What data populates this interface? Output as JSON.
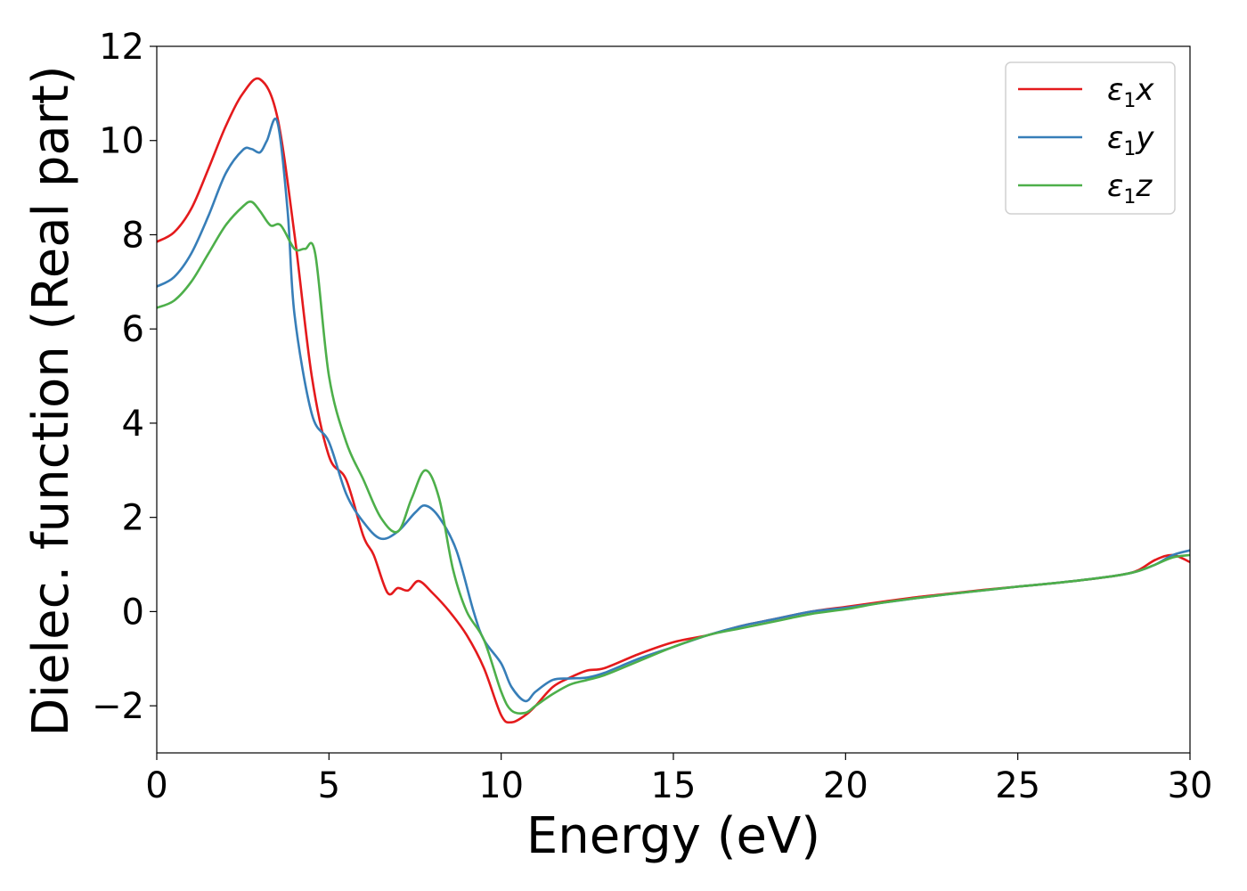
{
  "chart_data": {
    "type": "line",
    "title": "",
    "xlabel": "Energy (eV)",
    "ylabel": "Dielec. function (Real part)",
    "xlim": [
      0,
      30
    ],
    "ylim": [
      -3,
      12
    ],
    "xticks": [
      0,
      5,
      10,
      15,
      20,
      25,
      30
    ],
    "yticks": [
      -2,
      0,
      2,
      4,
      6,
      8,
      10,
      12
    ],
    "xtick_labels": [
      "0",
      "5",
      "10",
      "15",
      "20",
      "25",
      "30"
    ],
    "ytick_labels": [
      "−2",
      "0",
      "2",
      "4",
      "6",
      "8",
      "10",
      "12"
    ],
    "grid": false,
    "legend_position": "top-right",
    "series": [
      {
        "name": "ε1x",
        "legend_base": "ε",
        "legend_sub": "1",
        "legend_var": "x",
        "color": "#e41a1c",
        "x": [
          0,
          0.5,
          1,
          1.5,
          2,
          2.5,
          3,
          3.5,
          4,
          4.5,
          5,
          5.5,
          6,
          6.3,
          6.7,
          7,
          7.3,
          7.6,
          8,
          8.5,
          9,
          9.5,
          10,
          10.3,
          10.7,
          11,
          11.5,
          12,
          12.5,
          13,
          14,
          15,
          16,
          17,
          18,
          19,
          20,
          21,
          22,
          23,
          24,
          25,
          26,
          27,
          28,
          28.5,
          29,
          29.5,
          30
        ],
        "y": [
          7.85,
          8.05,
          8.55,
          9.4,
          10.3,
          11.0,
          11.3,
          10.5,
          8.0,
          5.0,
          3.3,
          2.8,
          1.6,
          1.2,
          0.4,
          0.5,
          0.45,
          0.65,
          0.4,
          0.0,
          -0.5,
          -1.2,
          -2.2,
          -2.35,
          -2.2,
          -2.0,
          -1.6,
          -1.4,
          -1.25,
          -1.2,
          -0.9,
          -0.65,
          -0.5,
          -0.3,
          -0.15,
          0.0,
          0.1,
          0.2,
          0.3,
          0.38,
          0.46,
          0.53,
          0.6,
          0.68,
          0.78,
          0.88,
          1.1,
          1.2,
          1.05
        ]
      },
      {
        "name": "ε1y",
        "legend_base": "ε",
        "legend_sub": "1",
        "legend_var": "y",
        "color": "#377eb8",
        "x": [
          0,
          0.5,
          1,
          1.5,
          2,
          2.5,
          2.75,
          3,
          3.2,
          3.5,
          3.8,
          4,
          4.5,
          5,
          5.5,
          6,
          6.5,
          7,
          7.5,
          7.8,
          8.2,
          8.7,
          9.2,
          9.5,
          10,
          10.3,
          10.7,
          11,
          11.5,
          12,
          12.5,
          13,
          14,
          15,
          16,
          17,
          18,
          19,
          20,
          21,
          22,
          23,
          24,
          25,
          26,
          27,
          28,
          28.5,
          29,
          29.5,
          30
        ],
        "y": [
          6.9,
          7.1,
          7.6,
          8.4,
          9.3,
          9.8,
          9.82,
          9.75,
          10.0,
          10.4,
          8.5,
          6.3,
          4.2,
          3.6,
          2.5,
          1.9,
          1.55,
          1.7,
          2.1,
          2.25,
          2.0,
          1.3,
          0.0,
          -0.6,
          -1.1,
          -1.6,
          -1.9,
          -1.7,
          -1.45,
          -1.42,
          -1.4,
          -1.3,
          -1.0,
          -0.75,
          -0.5,
          -0.3,
          -0.15,
          0.0,
          0.08,
          0.18,
          0.28,
          0.37,
          0.45,
          0.53,
          0.6,
          0.68,
          0.78,
          0.86,
          1.0,
          1.2,
          1.3
        ]
      },
      {
        "name": "ε1z",
        "legend_base": "ε",
        "legend_sub": "1",
        "legend_var": "z",
        "color": "#4daf4a",
        "x": [
          0,
          0.5,
          1,
          1.5,
          2,
          2.5,
          2.75,
          3,
          3.3,
          3.6,
          4,
          4.3,
          4.6,
          5,
          5.5,
          6,
          6.5,
          7,
          7.4,
          7.8,
          8.2,
          8.6,
          9,
          9.5,
          10,
          10.3,
          10.7,
          11,
          11.5,
          12,
          12.5,
          13,
          14,
          15,
          16,
          17,
          18,
          19,
          20,
          21,
          22,
          23,
          24,
          25,
          26,
          27,
          28,
          28.5,
          29,
          29.5,
          30
        ],
        "y": [
          6.45,
          6.6,
          7.0,
          7.6,
          8.2,
          8.6,
          8.7,
          8.5,
          8.2,
          8.2,
          7.7,
          7.7,
          7.6,
          5.0,
          3.6,
          2.8,
          2.0,
          1.7,
          2.4,
          3.0,
          2.4,
          0.9,
          0.0,
          -0.6,
          -1.7,
          -2.1,
          -2.15,
          -2.0,
          -1.75,
          -1.55,
          -1.45,
          -1.35,
          -1.05,
          -0.75,
          -0.5,
          -0.35,
          -0.2,
          -0.05,
          0.05,
          0.18,
          0.28,
          0.37,
          0.45,
          0.53,
          0.6,
          0.68,
          0.78,
          0.86,
          1.0,
          1.15,
          1.2
        ]
      }
    ]
  }
}
